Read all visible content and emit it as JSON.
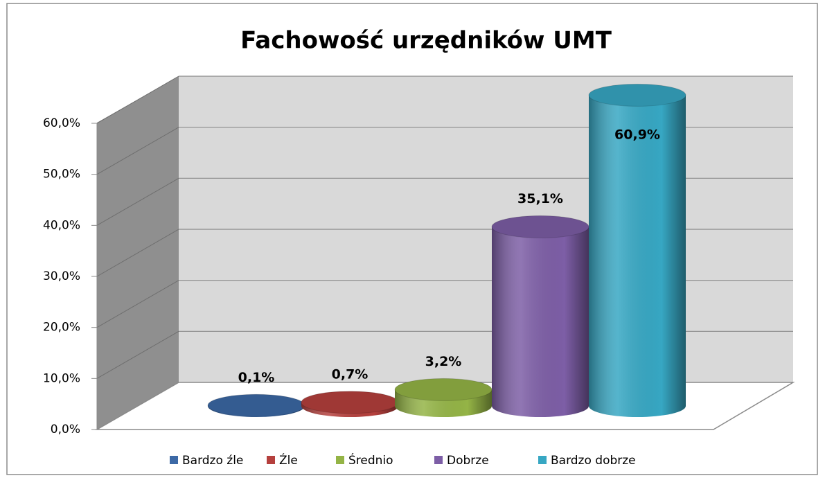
{
  "chart_data": {
    "type": "bar3d",
    "title": "Fachowość urzędników UMT",
    "categories": [
      "Bardzo źle",
      "Źle",
      "Średnio",
      "Dobrze",
      "Bardzo dobrze"
    ],
    "values": [
      0.1,
      0.7,
      3.2,
      35.1,
      60.9
    ],
    "value_labels": [
      "0,1%",
      "0,7%",
      "3,2%",
      "35,1%",
      "60,9%"
    ],
    "colors": [
      "#3c69a6",
      "#b5403d",
      "#94b446",
      "#7d5ea6",
      "#37a7c3"
    ],
    "ylim": [
      0,
      60
    ],
    "yticks": [
      {
        "value": 0,
        "label": "0,0%"
      },
      {
        "value": 10,
        "label": "10,0%"
      },
      {
        "value": 20,
        "label": "20,0%"
      },
      {
        "value": 30,
        "label": "30,0%"
      },
      {
        "value": 40,
        "label": "40,0%"
      },
      {
        "value": 50,
        "label": "50,0%"
      },
      {
        "value": 60,
        "label": "60,0%"
      }
    ],
    "grid": true
  }
}
